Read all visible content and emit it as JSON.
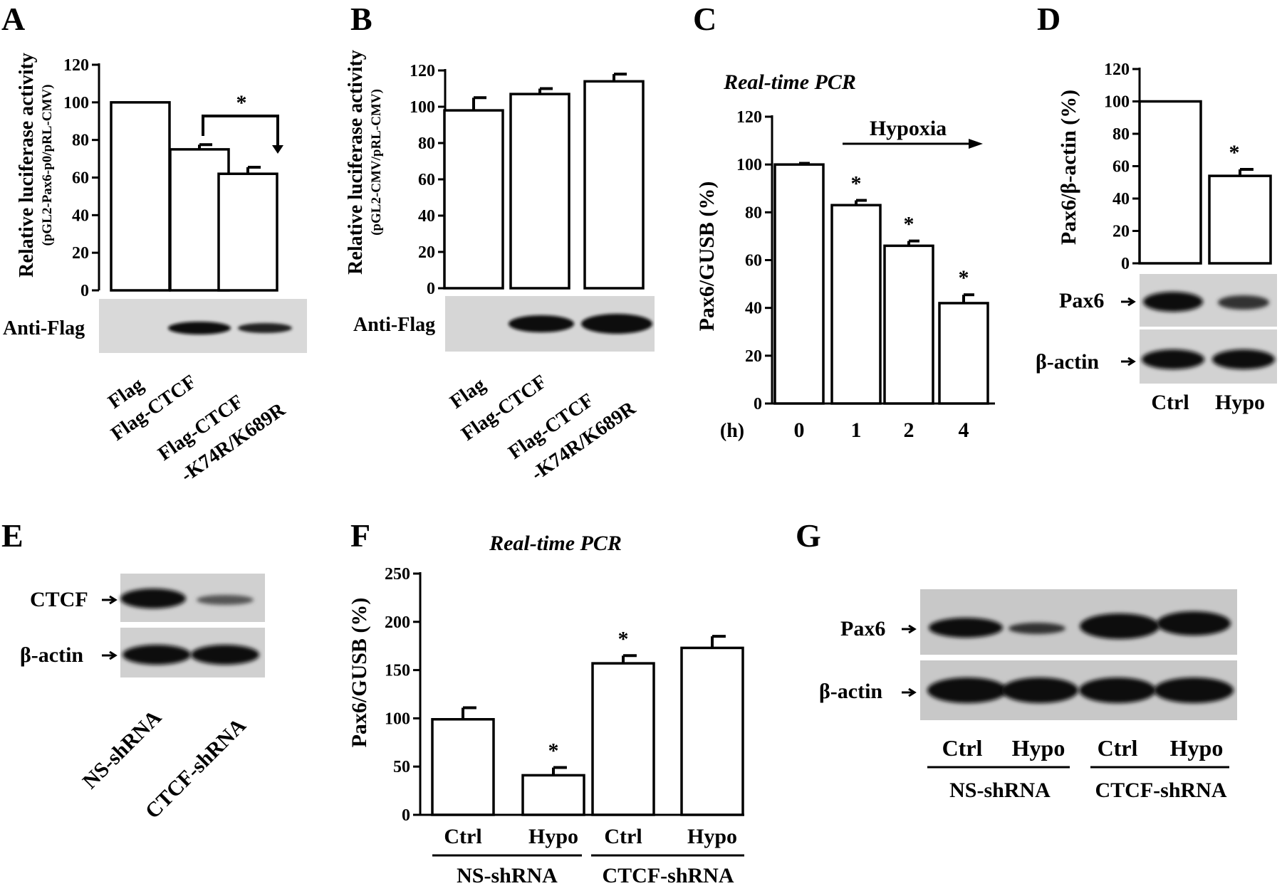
{
  "chart_data": [
    {
      "panel": "A",
      "type": "bar",
      "ylabel": "Relative luciferase activity",
      "ylabel_sub": "(pGL2-Pax6-p0/pRL-CMV)",
      "ylim": [
        0,
        120
      ],
      "yticks": [
        0,
        20,
        40,
        60,
        80,
        100,
        120
      ],
      "categories": [
        "Flag",
        "Flag-CTCF",
        "Flag-CTCF -K74R/K689R"
      ],
      "values": [
        100,
        75,
        62
      ],
      "errors": [
        0,
        2.5,
        3.5
      ],
      "significance": "*",
      "blot_label": "Anti-Flag"
    },
    {
      "panel": "B",
      "type": "bar",
      "ylabel": "Relative luciferase activity",
      "ylabel_sub": "(pGL2-CMV/pRL-CMV)",
      "ylim": [
        0,
        120
      ],
      "yticks": [
        0,
        20,
        40,
        60,
        80,
        100,
        120
      ],
      "categories": [
        "Flag",
        "Flag-CTCF",
        "Flag-CTCF -K74R/K689R"
      ],
      "values": [
        98,
        107,
        114
      ],
      "errors": [
        7,
        3,
        4
      ],
      "blot_label": "Anti-Flag"
    },
    {
      "panel": "C",
      "type": "bar",
      "title": "Real-time PCR",
      "ylabel": "Pax6/GUSB (%)",
      "ylim": [
        0,
        120
      ],
      "yticks": [
        0,
        20,
        40,
        60,
        80,
        100,
        120
      ],
      "xprefix": "(h)",
      "categories": [
        "0",
        "1",
        "2",
        "4"
      ],
      "values": [
        100,
        83,
        66,
        42
      ],
      "errors": [
        0.5,
        2,
        2,
        3.5
      ],
      "significance": [
        "",
        "*",
        "*",
        "*"
      ],
      "annotation": "Hypoxia"
    },
    {
      "panel": "D",
      "type": "bar",
      "ylabel": "Pax6/β-actin (%)",
      "ylim": [
        0,
        120
      ],
      "yticks": [
        0,
        20,
        40,
        60,
        80,
        100,
        120
      ],
      "categories": [
        "Ctrl",
        "Hypo"
      ],
      "values": [
        100,
        54
      ],
      "errors": [
        0,
        4
      ],
      "significance": [
        "",
        "*"
      ],
      "blot_labels": [
        "Pax6",
        "β-actin"
      ]
    },
    {
      "panel": "F",
      "type": "bar",
      "title": "Real-time PCR",
      "ylabel": "Pax6/GUSB (%)",
      "ylim": [
        0,
        250
      ],
      "yticks": [
        0,
        50,
        100,
        150,
        200,
        250
      ],
      "categories": [
        "Ctrl",
        "Hypo",
        "Ctrl",
        "Hypo"
      ],
      "groups": [
        "NS-shRNA",
        "CTCF-shRNA"
      ],
      "values": [
        99,
        41,
        157,
        173
      ],
      "errors": [
        12,
        8,
        8,
        12
      ],
      "significance": [
        "",
        "*",
        "*",
        ""
      ]
    }
  ],
  "panels": {
    "A": "A",
    "B": "B",
    "C": "C",
    "D": "D",
    "E": "E",
    "F": "F",
    "G": "G"
  },
  "panel_E": {
    "blot_labels": [
      "CTCF",
      "β-actin"
    ],
    "lanes": [
      "NS-shRNA",
      "CTCF-shRNA"
    ]
  },
  "panel_G": {
    "blot_labels": [
      "Pax6",
      "β-actin"
    ],
    "lanes": [
      "Ctrl",
      "Hypo",
      "Ctrl",
      "Hypo"
    ],
    "groups": [
      "NS-shRNA",
      "CTCF-shRNA"
    ]
  }
}
